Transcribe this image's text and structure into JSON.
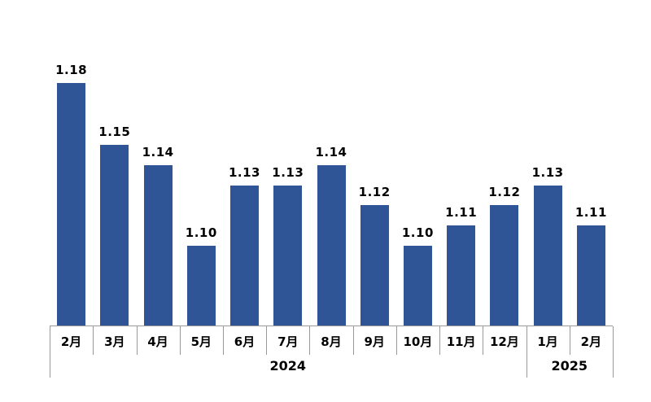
{
  "chart_data": {
    "type": "bar",
    "title": "",
    "xlabel": "",
    "ylabel": "",
    "categories": [
      "2月",
      "3月",
      "4月",
      "5月",
      "6月",
      "7月",
      "8月",
      "9月",
      "10月",
      "11月",
      "12月",
      "1月",
      "2月"
    ],
    "values": [
      1.18,
      1.15,
      1.14,
      1.1,
      1.13,
      1.13,
      1.14,
      1.12,
      1.1,
      1.11,
      1.12,
      1.13,
      1.11
    ],
    "value_labels": [
      "1.18",
      "1.15",
      "1.14",
      "1.10",
      "1.13",
      "1.13",
      "1.14",
      "1.12",
      "1.10",
      "1.11",
      "1.12",
      "1.13",
      "1.11"
    ],
    "year_groups": [
      {
        "label": "2024",
        "span": 11
      },
      {
        "label": "2025",
        "span": 2
      }
    ],
    "ylim": [
      1.06,
      1.196
    ],
    "grid": false,
    "legend": "none",
    "data_labels": "above-bars",
    "colors": {
      "bar": "#2F5597",
      "axis": "#999999",
      "tick": "#999999",
      "text": "#000000"
    }
  }
}
